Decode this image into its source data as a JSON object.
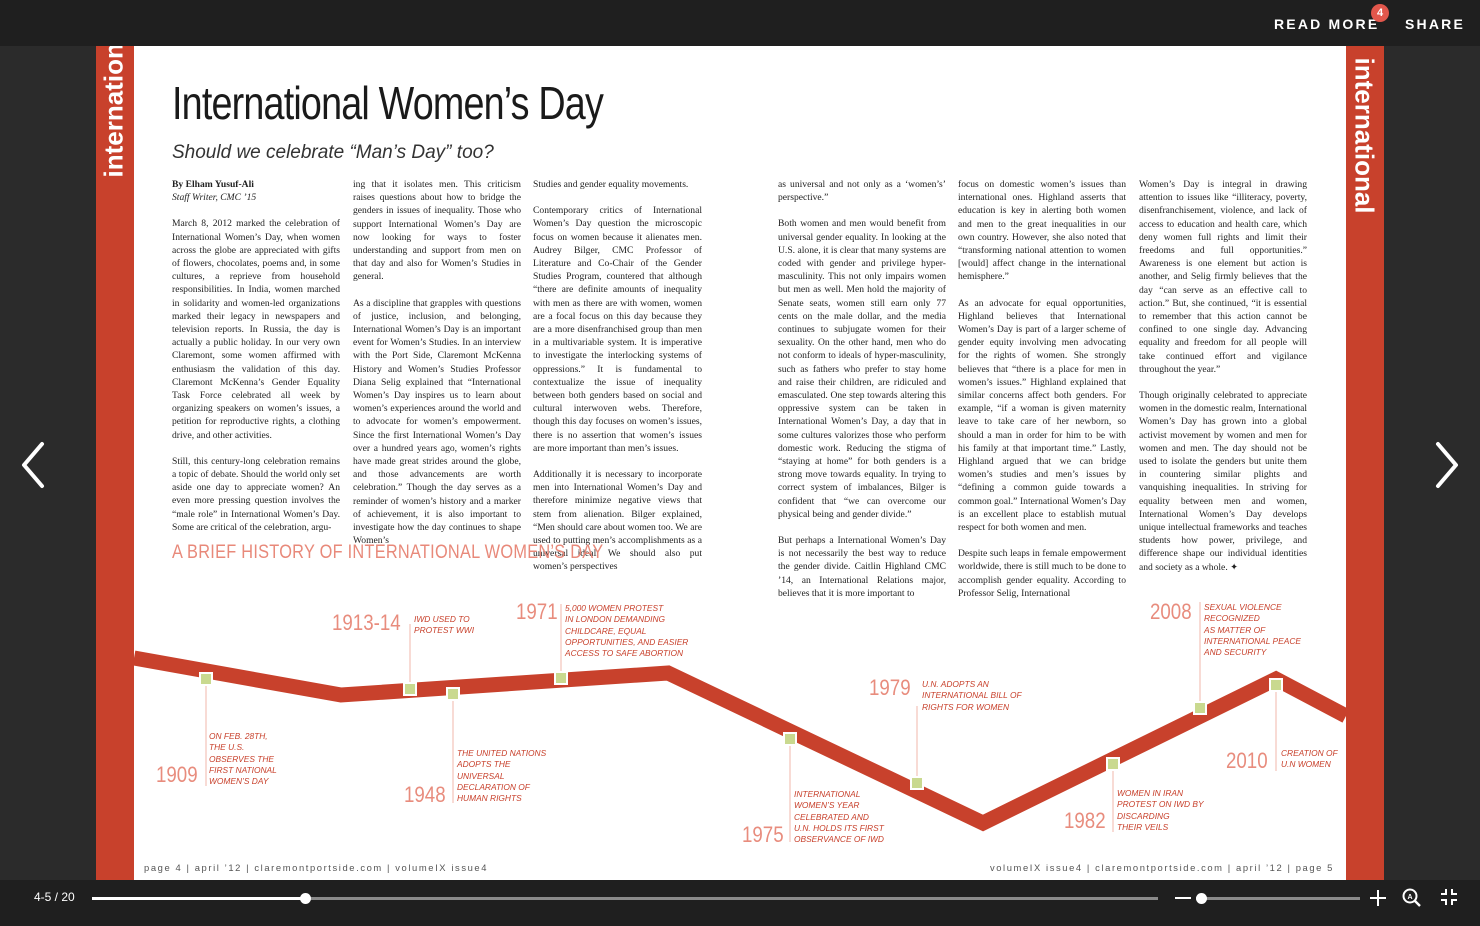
{
  "topbar": {
    "read_more": "READ MORE",
    "read_more_badge": "4",
    "share": "SHARE"
  },
  "page": {
    "section_left": "international",
    "section_right": "international",
    "title": "International Women’s Day",
    "subtitle": "Should we celebrate “Man’s Day” too?",
    "byline": "By Elham Yusuf-Ali",
    "role": "Staff Writer, CMC ’15",
    "history_heading": "A BRIEF HISTORY OF INTERNATIONAL WOMEN’S DAY",
    "columns": [
      [
        "March 8, 2012 marked the celebration of International Women’s Day, when women across the globe are appreciated with gifts of flowers, chocolates, poems and, in some cultures, a reprieve from household responsibilities. In India, women marched in solidarity and women-led organizations marked their legacy in newspapers and television reports. In Russia, the day is actually a public holiday. In our very own Claremont, some women affirmed with enthusiasm the validation of this day. Claremont McKenna’s Gender Equality Task Force celebrated all week by organizing speakers on women’s issues, a petition for reproductive rights, a clothing drive, and other activities.",
        "Still, this century-long celebration remains a topic of debate. Should the world only set aside one day to appreciate women? An even more pressing question involves the “male role” in International Women’s Day. Some are critical of the celebration, argu-"
      ],
      [
        "ing that it isolates men. This criticism raises questions about how to bridge the genders in issues of inequality. Those who support International Women’s Day are now looking for ways to foster understanding and support from men on that day and also for Women’s Studies in general.",
        "As a discipline that grapples with questions of justice, inclusion, and belonging, International Women’s Day is an important event for Women’s Studies. In an interview with the Port Side, Claremont McKenna History and Women’s Studies Professor Diana Selig explained that “International Women’s Day inspires us to learn about women’s experiences around the world and to advocate for women’s empowerment. Since the first International Women’s Day over a hundred years ago, women’s rights have made great strides around the globe, and those advancements are worth celebration.” Though the day serves as a reminder of women’s history and a marker of achievement, it is also important to investigate how the day continues to shape Women’s"
      ],
      [
        "Studies and gender equality movements.",
        "Contemporary critics of International Women’s Day question the microscopic focus on women because it alienates men. Audrey Bilger, CMC Professor of Literature and Co-Chair of the Gender Studies Program, countered that although “there are definite amounts of inequality with men as there are with women, women are a focal focus on this day because they are a more disenfranchised group than men in a multivariable system. It is imperative to investigate the interlocking systems of oppressions.” It is fundamental to contextualize the issue of inequality between both genders based on social and cultural interwoven webs. Therefore, though this day focuses on women’s issues, there is no assertion that women’s issues are more important than men’s issues.",
        "Additionally it is necessary to incorporate men into International Women’s Day and therefore minimize negative views that stem from alienation. Bilger explained, “Men should care about women too. We are used to putting men’s accomplishments as a universal ideal. We should also put women’s perspectives"
      ],
      [
        "as universal and not only as a ‘women’s’ perspective.”",
        "Both women and men would benefit from universal gender equality. In looking at the U.S. alone, it is clear that many systems are coded with gender and privilege hyper-masculinity. This not only impairs women but men as well. Men hold the majority of Senate seats, women still earn only 77 cents on the male dollar, and the media continues to subjugate women for their sexuality. On the other hand, men who do not conform to ideals of hyper-masculinity, such as fathers who prefer to stay home and raise their children, are ridiculed and emasculated. One step towards altering this oppressive system can be taken in International Women’s Day, a day that in some cultures valorizes those who perform domestic work. Reducing the stigma of “staying at home” for both genders is a strong move towards equality. In trying to correct system of imbalances, Bilger is confident that “we can overcome our physical being and gender divide.”",
        "But perhaps a International Women’s Day is not necessarily the best way to reduce the gender divide. Caitlin Highland CMC ’14, an International Relations major, believes that it is more important to"
      ],
      [
        "focus on domestic women’s issues than international ones. Highland asserts that education is key in alerting both women and men to the great inequalities in our own country. However, she also noted that “transforming national attention to women [would] affect change in the international hemisphere.”",
        "As an advocate for equal opportunities, Highland believes that International Women’s Day is part of a larger scheme of gender equity involving men advocating for the rights of women. She strongly believes that “there is a place for men in women’s issues.” Highland explained that similar concerns affect both genders. For example, “if a woman is given maternity leave to take care of her newborn, so should a man in order for him to be with his family at that important time.” Lastly, Highland argued that we can bridge women’s studies and men’s issues by “defining a common guide towards a common goal.” International Women’s Day is an excellent place to establish mutual respect for both women and men.",
        "Despite such leaps in female empowerment worldwide, there is still much to be done to accomplish gender equality. According to Professor Selig, International"
      ],
      [
        "Women’s Day is integral in drawing attention to issues like “illiteracy, poverty, disenfranchisement, violence, and lack of access to education and health care, which deny women full rights and limit their freedoms and full opportunities.” Awareness is one element but action is another, and Selig firmly believes that the day “can serve as an effective call to action.” But, she continued, “it is essential to remember that this action cannot be confined to one single day. Advancing equality and freedom for all people will take continued effort and vigilance throughout the year.”",
        "Though originally celebrated to appreciate women in the domestic realm, International Women’s Day has grown into a global activist movement by women and men for women and men. The day should not be used to isolate the genders but unite them in countering similar plights and vanquishing inequalities. In striving for equality between men and women, International Women’s Day develops unique intellectual frameworks and teaches students how power, privilege, and difference shape our individual identities and society as a whole. ✦"
      ]
    ],
    "timeline": [
      {
        "year": "1909",
        "text": "ON FEB. 28TH,\nTHE U.S.\nOBSERVES THE\nFIRST NATIONAL\nWOMEN’S DAY"
      },
      {
        "year": "1913-14",
        "text": "IWD USED TO\nPROTEST WWI"
      },
      {
        "year": "1948",
        "text": "THE UNITED NATIONS\nADOPTS THE\nUNIVERSAL\nDECLARATION OF\nHUMAN RIGHTS"
      },
      {
        "year": "1971",
        "text": "5,000 WOMEN PROTEST\nIN LONDON DEMANDING\nCHILDCARE, EQUAL\nOPPORTUNITIES, AND EASIER\nACCESS TO SAFE ABORTION"
      },
      {
        "year": "1975",
        "text": "INTERNATIONAL\nWOMEN’S YEAR\nCELEBRATED AND\nU.N. HOLDS ITS FIRST\nOBSERVANCE OF IWD"
      },
      {
        "year": "1979",
        "text": "U.N. ADOPTS AN\nINTERNATIONAL BILL OF\nRIGHTS FOR WOMEN"
      },
      {
        "year": "1982",
        "text": "WOMEN IN IRAN\nPROTEST ON IWD BY\nDISCARDING\nTHEIR VEILS"
      },
      {
        "year": "2008",
        "text": "SEXUAL VIOLENCE\nRECOGNIZED\nAS MATTER OF\nINTERNATIONAL PEACE\nAND SECURITY"
      },
      {
        "year": "2010",
        "text": "CREATION OF\nU.N WOMEN"
      }
    ],
    "footer_left": "page 4  |  april ’12  |  claremontportside.com  |  volumeIX issue4",
    "footer_right": "volumeIX issue4  |  claremontportside.com  |  april ’12  |  page 5"
  },
  "bottombar": {
    "page_count": "4-5 / 20",
    "progress_fraction": 0.2,
    "zoom_fraction": 0.0
  },
  "icons": [
    "chevron-left-icon",
    "chevron-right-icon",
    "minus-icon",
    "plus-icon",
    "zoom-search-icon",
    "fullscreen-icon"
  ],
  "colors": {
    "accent_red": "#c8412c",
    "salmon": "#e88c7d",
    "marker_green": "#c9d98f",
    "chrome": "#1f1f1f"
  }
}
